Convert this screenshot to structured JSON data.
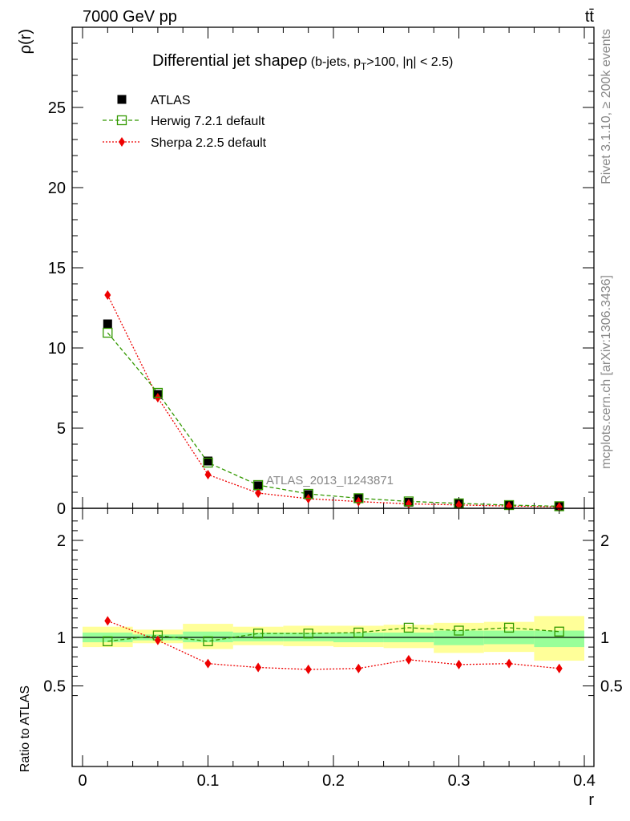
{
  "header": {
    "left_text": "7000 GeV pp",
    "right_text": "tt̄"
  },
  "side_labels": {
    "top": "Rivet 3.1.10, ≥ 200k events",
    "bottom": "mcplots.cern.ch [arXiv:1306.3436]"
  },
  "chart_data": [
    {
      "type": "line",
      "title": "Differential jet shape",
      "title_symbol": "ρ",
      "title_suffix_1": " (b-jets, p",
      "title_sub": "T",
      "title_suffix_2": ">100, |η| < 2.5)",
      "ylabel": "ρ(r)",
      "xlabel": "",
      "watermark": "ATLAS_2013_I1243871",
      "xlim": [
        0,
        0.4
      ],
      "ylim": [
        0,
        30
      ],
      "y_ticks": [
        0,
        5,
        10,
        15,
        20,
        25
      ],
      "y_tick_labels": [
        "0",
        "5",
        "10",
        "15",
        "20",
        "25"
      ],
      "legend_position": "top-left",
      "x": [
        0.02,
        0.06,
        0.1,
        0.14,
        0.18,
        0.22,
        0.26,
        0.3,
        0.34,
        0.38
      ],
      "series": [
        {
          "name": "ATLAS",
          "color": "#000000",
          "marker": "square-filled",
          "values": [
            11.5,
            7.1,
            2.95,
            1.4,
            0.85,
            0.6,
            0.38,
            0.28,
            0.18,
            0.12
          ]
        },
        {
          "name": "Herwig 7.2.1 default",
          "color": "#339900",
          "marker": "square-open",
          "line": "dashed",
          "values": [
            10.95,
            7.2,
            2.85,
            1.45,
            0.9,
            0.63,
            0.43,
            0.31,
            0.2,
            0.13
          ]
        },
        {
          "name": "Sherpa 2.2.5 default",
          "color": "#ee0000",
          "marker": "diamond",
          "line": "dotted",
          "values": [
            13.3,
            6.9,
            2.1,
            0.95,
            0.6,
            0.42,
            0.28,
            0.21,
            0.14,
            0.09
          ]
        }
      ]
    },
    {
      "type": "line",
      "ylabel": "Ratio to ATLAS",
      "xlabel": "r",
      "xlim": [
        0,
        0.4
      ],
      "ylim": [
        0.35,
        2.25
      ],
      "x_ticks": [
        0,
        0.1,
        0.2,
        0.3,
        0.4
      ],
      "x_tick_labels": [
        "0",
        "0.1",
        "0.2",
        "0.3",
        "0.4"
      ],
      "y_ticks": [
        0.5,
        1,
        2
      ],
      "y_tick_labels": [
        "0.5",
        "1",
        "2"
      ],
      "x": [
        0.02,
        0.06,
        0.1,
        0.14,
        0.18,
        0.22,
        0.26,
        0.3,
        0.34,
        0.38
      ],
      "bins": [
        [
          0,
          0.04
        ],
        [
          0.04,
          0.08
        ],
        [
          0.08,
          0.12
        ],
        [
          0.12,
          0.16
        ],
        [
          0.16,
          0.2
        ],
        [
          0.2,
          0.24
        ],
        [
          0.24,
          0.28
        ],
        [
          0.28,
          0.32
        ],
        [
          0.32,
          0.36
        ],
        [
          0.36,
          0.4
        ]
      ],
      "band_stat": [
        [
          0.95,
          1.05
        ],
        [
          0.97,
          1.03
        ],
        [
          0.95,
          1.06
        ],
        [
          0.96,
          1.05
        ],
        [
          0.96,
          1.05
        ],
        [
          0.95,
          1.05
        ],
        [
          0.95,
          1.05
        ],
        [
          0.92,
          1.07
        ],
        [
          0.93,
          1.07
        ],
        [
          0.9,
          1.07
        ]
      ],
      "band_total": [
        [
          0.9,
          1.11
        ],
        [
          0.94,
          1.08
        ],
        [
          0.88,
          1.14
        ],
        [
          0.92,
          1.11
        ],
        [
          0.91,
          1.12
        ],
        [
          0.9,
          1.12
        ],
        [
          0.89,
          1.13
        ],
        [
          0.84,
          1.15
        ],
        [
          0.85,
          1.16
        ],
        [
          0.76,
          1.22
        ]
      ],
      "band_colors": {
        "stat": "#99ff99",
        "total": "#ffff99"
      },
      "series": [
        {
          "name": "Herwig 7.2.1 default",
          "color": "#339900",
          "marker": "square-open",
          "line": "dashed",
          "values": [
            0.96,
            1.02,
            0.96,
            1.04,
            1.04,
            1.05,
            1.1,
            1.07,
            1.1,
            1.06
          ]
        },
        {
          "name": "Sherpa 2.2.5 default",
          "color": "#ee0000",
          "marker": "diamond",
          "line": "dotted",
          "values": [
            1.17,
            0.97,
            0.73,
            0.69,
            0.67,
            0.68,
            0.77,
            0.72,
            0.73,
            0.68
          ]
        }
      ]
    }
  ]
}
